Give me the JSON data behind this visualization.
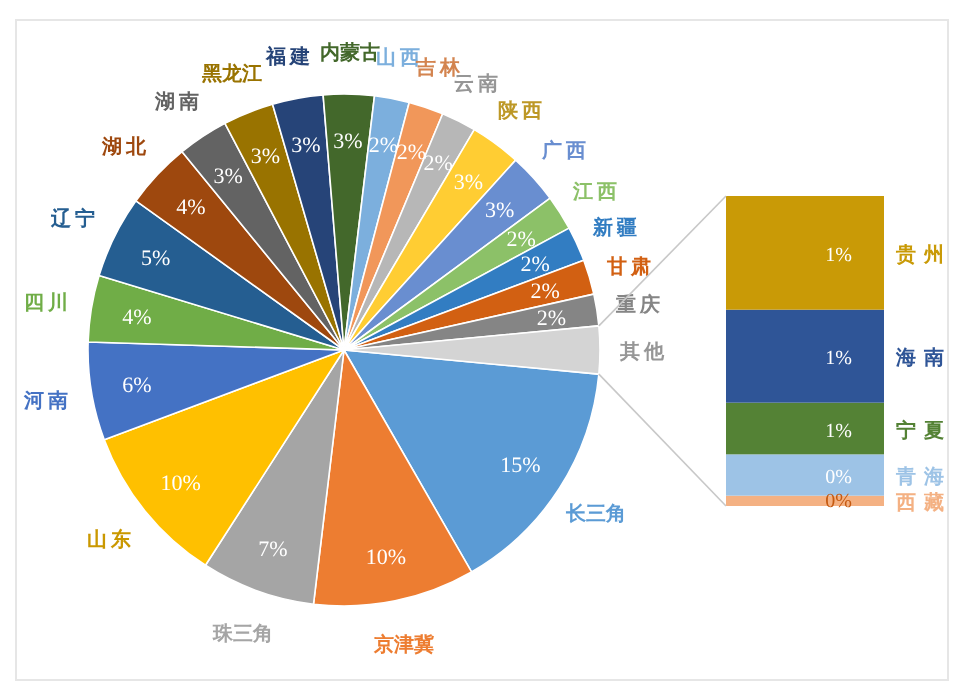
{
  "chart_data": [
    {
      "type": "pie",
      "categories": [
        "长三角",
        "京津冀",
        "珠三角",
        "山东",
        "河南",
        "四川",
        "辽宁",
        "湖北",
        "湖南",
        "黑龙江",
        "福建",
        "内蒙古",
        "山西",
        "吉林",
        "云南",
        "陕西",
        "广西",
        "江西",
        "新疆",
        "甘肃",
        "重庆",
        "其他"
      ],
      "values": [
        15.2,
        10.2,
        7.2,
        10.2,
        6.2,
        4.2,
        5.2,
        4.2,
        3.2,
        3.2,
        3.2,
        3.2,
        2.2,
        2.2,
        2.2,
        3.2,
        3.2,
        2.2,
        2.2,
        2.2,
        2,
        3
      ],
      "value_labels": [
        "15%",
        "10%",
        "7%",
        "10%",
        "6%",
        "4%",
        "5%",
        "4%",
        "3%",
        "3%",
        "3%",
        "3%",
        "2%",
        "2%",
        "2%",
        "3%",
        "3%",
        "2%",
        "2%",
        "2%",
        "2%",
        null
      ],
      "colors": [
        "#5b9bd5",
        "#ed7d31",
        "#a5a5a5",
        "#ffc000",
        "#4472c4",
        "#70ad47",
        "#255e91",
        "#9e480e",
        "#636363",
        "#997300",
        "#264478",
        "#43682b",
        "#7cafdd",
        "#f1975a",
        "#b7b7b7",
        "#ffcd33",
        "#698ed0",
        "#8cc168",
        "#327dc2",
        "#d26012",
        "#858585",
        "#d4d4d4"
      ]
    },
    {
      "type": "bar",
      "stacked": true,
      "categories": [
        null
      ],
      "series": [
        {
          "name": "西藏",
          "color": "#f4b183",
          "values": [
            0.1
          ],
          "value_labels": [
            "0%"
          ]
        },
        {
          "name": "青海",
          "color": "#9dc3e6",
          "values": [
            0.4
          ],
          "value_labels": [
            "0%"
          ]
        },
        {
          "name": "宁夏",
          "color": "#548235",
          "values": [
            0.5
          ],
          "value_labels": [
            "1%"
          ]
        },
        {
          "name": "海南",
          "color": "#2f5597",
          "values": [
            0.9
          ],
          "value_labels": [
            "1%"
          ]
        },
        {
          "name": "贵州",
          "color": "#c99a06",
          "values": [
            1.1
          ],
          "value_labels": [
            "1%"
          ]
        }
      ]
    }
  ]
}
